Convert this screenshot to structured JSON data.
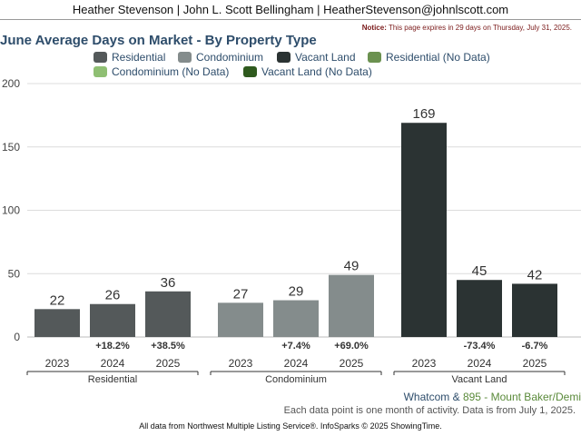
{
  "header": {
    "text": "Heather Stevenson | John L. Scott Bellingham | HeatherStevenson@johnlscott.com"
  },
  "notice": {
    "label": "Notice:",
    "text": "This page expires in 29 days on Thursday, July 31, 2025."
  },
  "legend": [
    {
      "label": "Residential",
      "color": "#54595a"
    },
    {
      "label": "Condominium",
      "color": "#848c8c"
    },
    {
      "label": "Vacant Land",
      "color": "#2b3333"
    },
    {
      "label": "Residential (No Data)",
      "color": "#6b9150"
    },
    {
      "label": "Condominium (No Data)",
      "color": "#8fbf73"
    },
    {
      "label": "Vacant Land (No Data)",
      "color": "#2f5a1e"
    }
  ],
  "geo": {
    "part_a": "Whatcom",
    "joiner": " & ",
    "part_b": "895 - Mount Baker/Demi"
  },
  "source_note": "Each data point is one month of activity. Data is from July 1, 2025.",
  "footer": "All data from Northwest Multiple Listing Service®. InfoSparks © 2025 ShowingTime.",
  "chart_data": {
    "type": "bar",
    "title": "June Average Days on Market - By Property Type",
    "ylim": [
      0,
      200
    ],
    "yticks": [
      0,
      50,
      100,
      150,
      200
    ],
    "grid": true,
    "legend_position": "top",
    "groups": [
      {
        "name": "Residential",
        "color": "#54595a",
        "bars": [
          {
            "x": "2023",
            "value": 22,
            "change": ""
          },
          {
            "x": "2024",
            "value": 26,
            "change": "+18.2%"
          },
          {
            "x": "2025",
            "value": 36,
            "change": "+38.5%"
          }
        ]
      },
      {
        "name": "Condominium",
        "color": "#848c8c",
        "bars": [
          {
            "x": "2023",
            "value": 27,
            "change": ""
          },
          {
            "x": "2024",
            "value": 29,
            "change": "+7.4%"
          },
          {
            "x": "2025",
            "value": 49,
            "change": "+69.0%"
          }
        ]
      },
      {
        "name": "Vacant Land",
        "color": "#2b3333",
        "bars": [
          {
            "x": "2023",
            "value": 169,
            "change": ""
          },
          {
            "x": "2024",
            "value": 45,
            "change": "-73.4%"
          },
          {
            "x": "2025",
            "value": 42,
            "change": "-6.7%"
          }
        ]
      }
    ]
  }
}
